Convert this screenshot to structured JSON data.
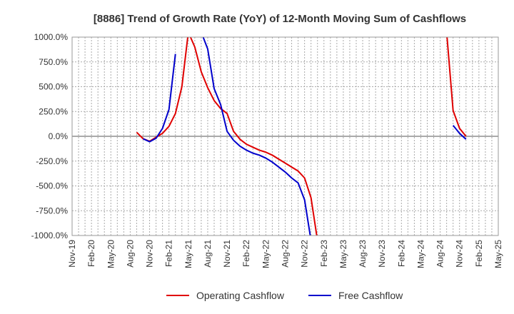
{
  "chart_data": {
    "type": "line",
    "title": "[8886]  Trend of Growth Rate (YoY) of 12-Month Moving Sum of Cashflows",
    "xlabel": "",
    "ylabel": "",
    "x_ticks": [
      "Nov-19",
      "Feb-20",
      "May-20",
      "Aug-20",
      "Nov-20",
      "Feb-21",
      "May-21",
      "Aug-21",
      "Nov-21",
      "Feb-22",
      "May-22",
      "Aug-22",
      "Nov-22",
      "Feb-23",
      "May-23",
      "Aug-23",
      "Nov-23",
      "Feb-24",
      "May-24",
      "Aug-24",
      "Nov-24",
      "Feb-25",
      "May-25"
    ],
    "y_ticks": [
      1000,
      750,
      500,
      250,
      0,
      -250,
      -500,
      -750,
      -1000
    ],
    "y_tick_labels": [
      "1000.0%",
      "750.0%",
      "500.0%",
      "250.0%",
      "0.0%",
      "-250.0%",
      "-500.0%",
      "-750.0%",
      "-1000.0%"
    ],
    "ylim": [
      -1000,
      1000
    ],
    "x_range": [
      "2019-11",
      "2025-05"
    ],
    "grid": true,
    "legend": "bottom",
    "series": [
      {
        "name": "Operating Cashflow",
        "color": "#e00000",
        "segments": [
          [
            [
              "2020-09",
              40
            ],
            [
              "2020-10",
              -25
            ],
            [
              "2020-11",
              -50
            ],
            [
              "2020-12",
              -10
            ],
            [
              "2021-01",
              30
            ],
            [
              "2021-02",
              100
            ],
            [
              "2021-03",
              230
            ],
            [
              "2021-04",
              500
            ],
            [
              "2021-05",
              1050
            ],
            [
              "2021-06",
              900
            ],
            [
              "2021-07",
              650
            ],
            [
              "2021-08",
              490
            ],
            [
              "2021-09",
              360
            ],
            [
              "2021-10",
              280
            ],
            [
              "2021-11",
              230
            ],
            [
              "2021-12",
              50
            ],
            [
              "2022-01",
              -30
            ],
            [
              "2022-02",
              -80
            ],
            [
              "2022-03",
              -110
            ],
            [
              "2022-04",
              -140
            ],
            [
              "2022-05",
              -160
            ],
            [
              "2022-06",
              -190
            ],
            [
              "2022-07",
              -230
            ],
            [
              "2022-08",
              -270
            ],
            [
              "2022-09",
              -310
            ],
            [
              "2022-10",
              -350
            ],
            [
              "2022-11",
              -420
            ],
            [
              "2022-12",
              -620
            ],
            [
              "2023-01",
              -1050
            ]
          ],
          [
            [
              "2024-09",
              1050
            ],
            [
              "2024-10",
              260
            ],
            [
              "2024-11",
              80
            ],
            [
              "2024-12",
              0
            ]
          ]
        ]
      },
      {
        "name": "Free Cashflow",
        "color": "#0000cc",
        "segments": [
          [
            [
              "2020-10",
              -25
            ],
            [
              "2020-11",
              -55
            ],
            [
              "2020-12",
              -20
            ],
            [
              "2021-01",
              80
            ],
            [
              "2021-02",
              270
            ],
            [
              "2021-03",
              830
            ]
          ],
          [
            [
              "2021-07",
              1050
            ],
            [
              "2021-08",
              880
            ],
            [
              "2021-09",
              480
            ],
            [
              "2021-10",
              320
            ],
            [
              "2021-11",
              50
            ],
            [
              "2021-12",
              -40
            ],
            [
              "2022-01",
              -100
            ],
            [
              "2022-02",
              -140
            ],
            [
              "2022-03",
              -170
            ],
            [
              "2022-04",
              -190
            ],
            [
              "2022-05",
              -220
            ],
            [
              "2022-06",
              -260
            ],
            [
              "2022-07",
              -310
            ],
            [
              "2022-08",
              -360
            ],
            [
              "2022-09",
              -420
            ],
            [
              "2022-10",
              -470
            ],
            [
              "2022-11",
              -640
            ],
            [
              "2022-12",
              -1050
            ]
          ],
          [
            [
              "2024-10",
              110
            ],
            [
              "2024-11",
              30
            ],
            [
              "2024-12",
              -30
            ]
          ]
        ]
      }
    ]
  }
}
